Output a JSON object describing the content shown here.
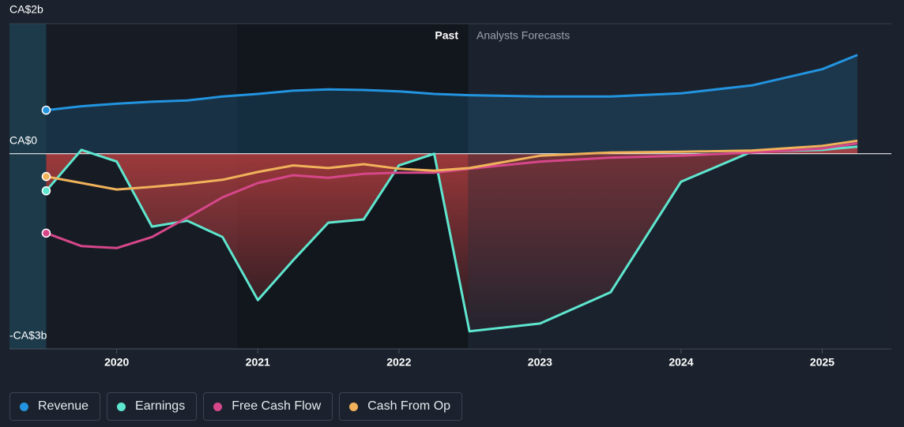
{
  "chart_data": {
    "type": "line",
    "x": [
      2019.5,
      2019.75,
      2020,
      2020.25,
      2020.5,
      2020.75,
      2021,
      2021.25,
      2021.5,
      2021.75,
      2022,
      2022.25,
      2022.5,
      2023,
      2023.5,
      2024,
      2024.5,
      2025,
      2025.25
    ],
    "xlim": [
      2019.24,
      2025.49
    ],
    "xticks": [
      2020,
      2021,
      2022,
      2023,
      2024,
      2025
    ],
    "ylim": [
      -3,
      2
    ],
    "yticks": [
      {
        "value": 2,
        "label": "CA$2b"
      },
      {
        "value": 0,
        "label": "CA$0"
      },
      {
        "value": -3,
        "label": "-CA$3b"
      }
    ],
    "past_label": "Past",
    "forecast_label": "Analysts Forecasts",
    "past_end": 2022.49,
    "series": [
      {
        "name": "Revenue",
        "color": "#2394df",
        "values": [
          0.67,
          0.73,
          0.77,
          0.8,
          0.82,
          0.88,
          0.92,
          0.97,
          0.99,
          0.98,
          0.96,
          0.92,
          0.9,
          0.88,
          0.88,
          0.93,
          1.05,
          1.3,
          1.52
        ]
      },
      {
        "name": "Earnings",
        "color": "#5ee6cf",
        "values": [
          -0.57,
          0.06,
          -0.12,
          -1.12,
          -1.03,
          -1.28,
          -2.25,
          -1.64,
          -1.06,
          -1.01,
          -0.18,
          0.0,
          -2.73,
          -2.61,
          -2.13,
          -0.43,
          0.03,
          0.06,
          0.11
        ]
      },
      {
        "name": "Free Cash Flow",
        "color": "#d6478a",
        "values": [
          -1.22,
          -1.42,
          -1.45,
          -1.28,
          -0.98,
          -0.67,
          -0.45,
          -0.33,
          -0.37,
          -0.31,
          -0.29,
          -0.29,
          -0.23,
          -0.12,
          -0.06,
          -0.03,
          0.02,
          0.08,
          0.16
        ]
      },
      {
        "name": "Cash From Op",
        "color": "#f0b25a",
        "values": [
          -0.35,
          -0.45,
          -0.55,
          -0.51,
          -0.46,
          -0.4,
          -0.28,
          -0.18,
          -0.22,
          -0.16,
          -0.23,
          -0.26,
          -0.22,
          -0.03,
          0.02,
          0.03,
          0.05,
          0.12,
          0.2
        ]
      }
    ]
  }
}
